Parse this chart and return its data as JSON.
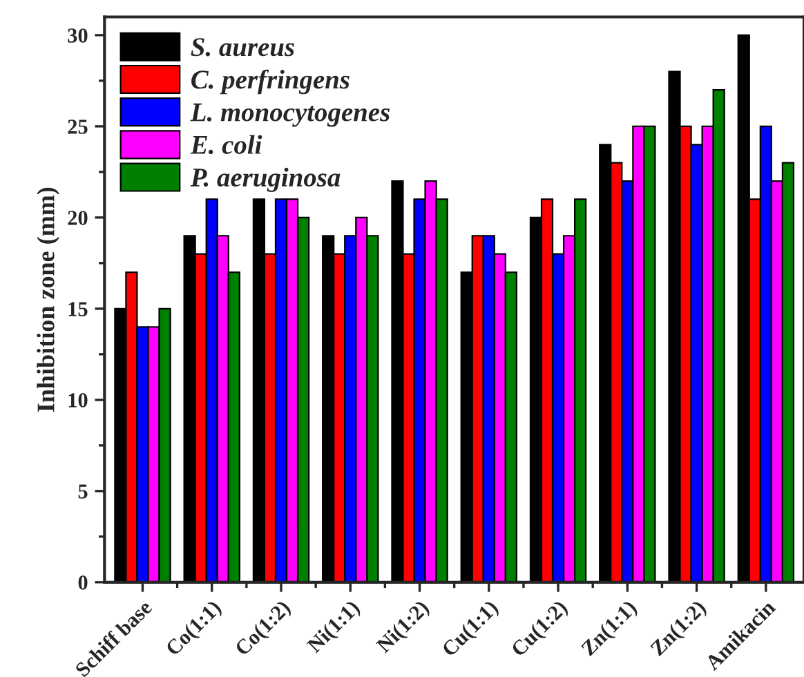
{
  "chart_data": {
    "type": "bar",
    "ylabel": "Inhibition zone (mm)",
    "categories": [
      "Schiff base",
      "Co(1:1)",
      "Co(1:2)",
      "Ni(1:1)",
      "Ni(1:2)",
      "Cu(1:1)",
      "Cu(1:2)",
      "Zn(1:1)",
      "Zn(1:2)",
      "Amikacin"
    ],
    "series": [
      {
        "name": "S. aureus",
        "color": "#000000",
        "values": [
          15,
          19,
          21,
          19,
          22,
          17,
          20,
          24,
          28,
          30
        ]
      },
      {
        "name": "C. perfringens",
        "color": "#ff0000",
        "values": [
          17,
          18,
          18,
          18,
          18,
          19,
          21,
          23,
          25,
          21
        ]
      },
      {
        "name": "L. monocytogenes",
        "color": "#0000ff",
        "values": [
          14,
          21,
          21,
          19,
          21,
          19,
          18,
          22,
          24,
          25
        ]
      },
      {
        "name": "E. coli",
        "color": "#ff00ff",
        "values": [
          14,
          19,
          21,
          20,
          22,
          18,
          19,
          25,
          25,
          22
        ]
      },
      {
        "name": "P. aeruginosa",
        "color": "#008000",
        "values": [
          15,
          17,
          20,
          19,
          21,
          17,
          21,
          25,
          27,
          23
        ]
      }
    ],
    "ylim": [
      0,
      31
    ],
    "yticks": [
      0,
      5,
      10,
      15,
      20,
      25,
      30
    ],
    "grid": false,
    "legend": "top left"
  }
}
